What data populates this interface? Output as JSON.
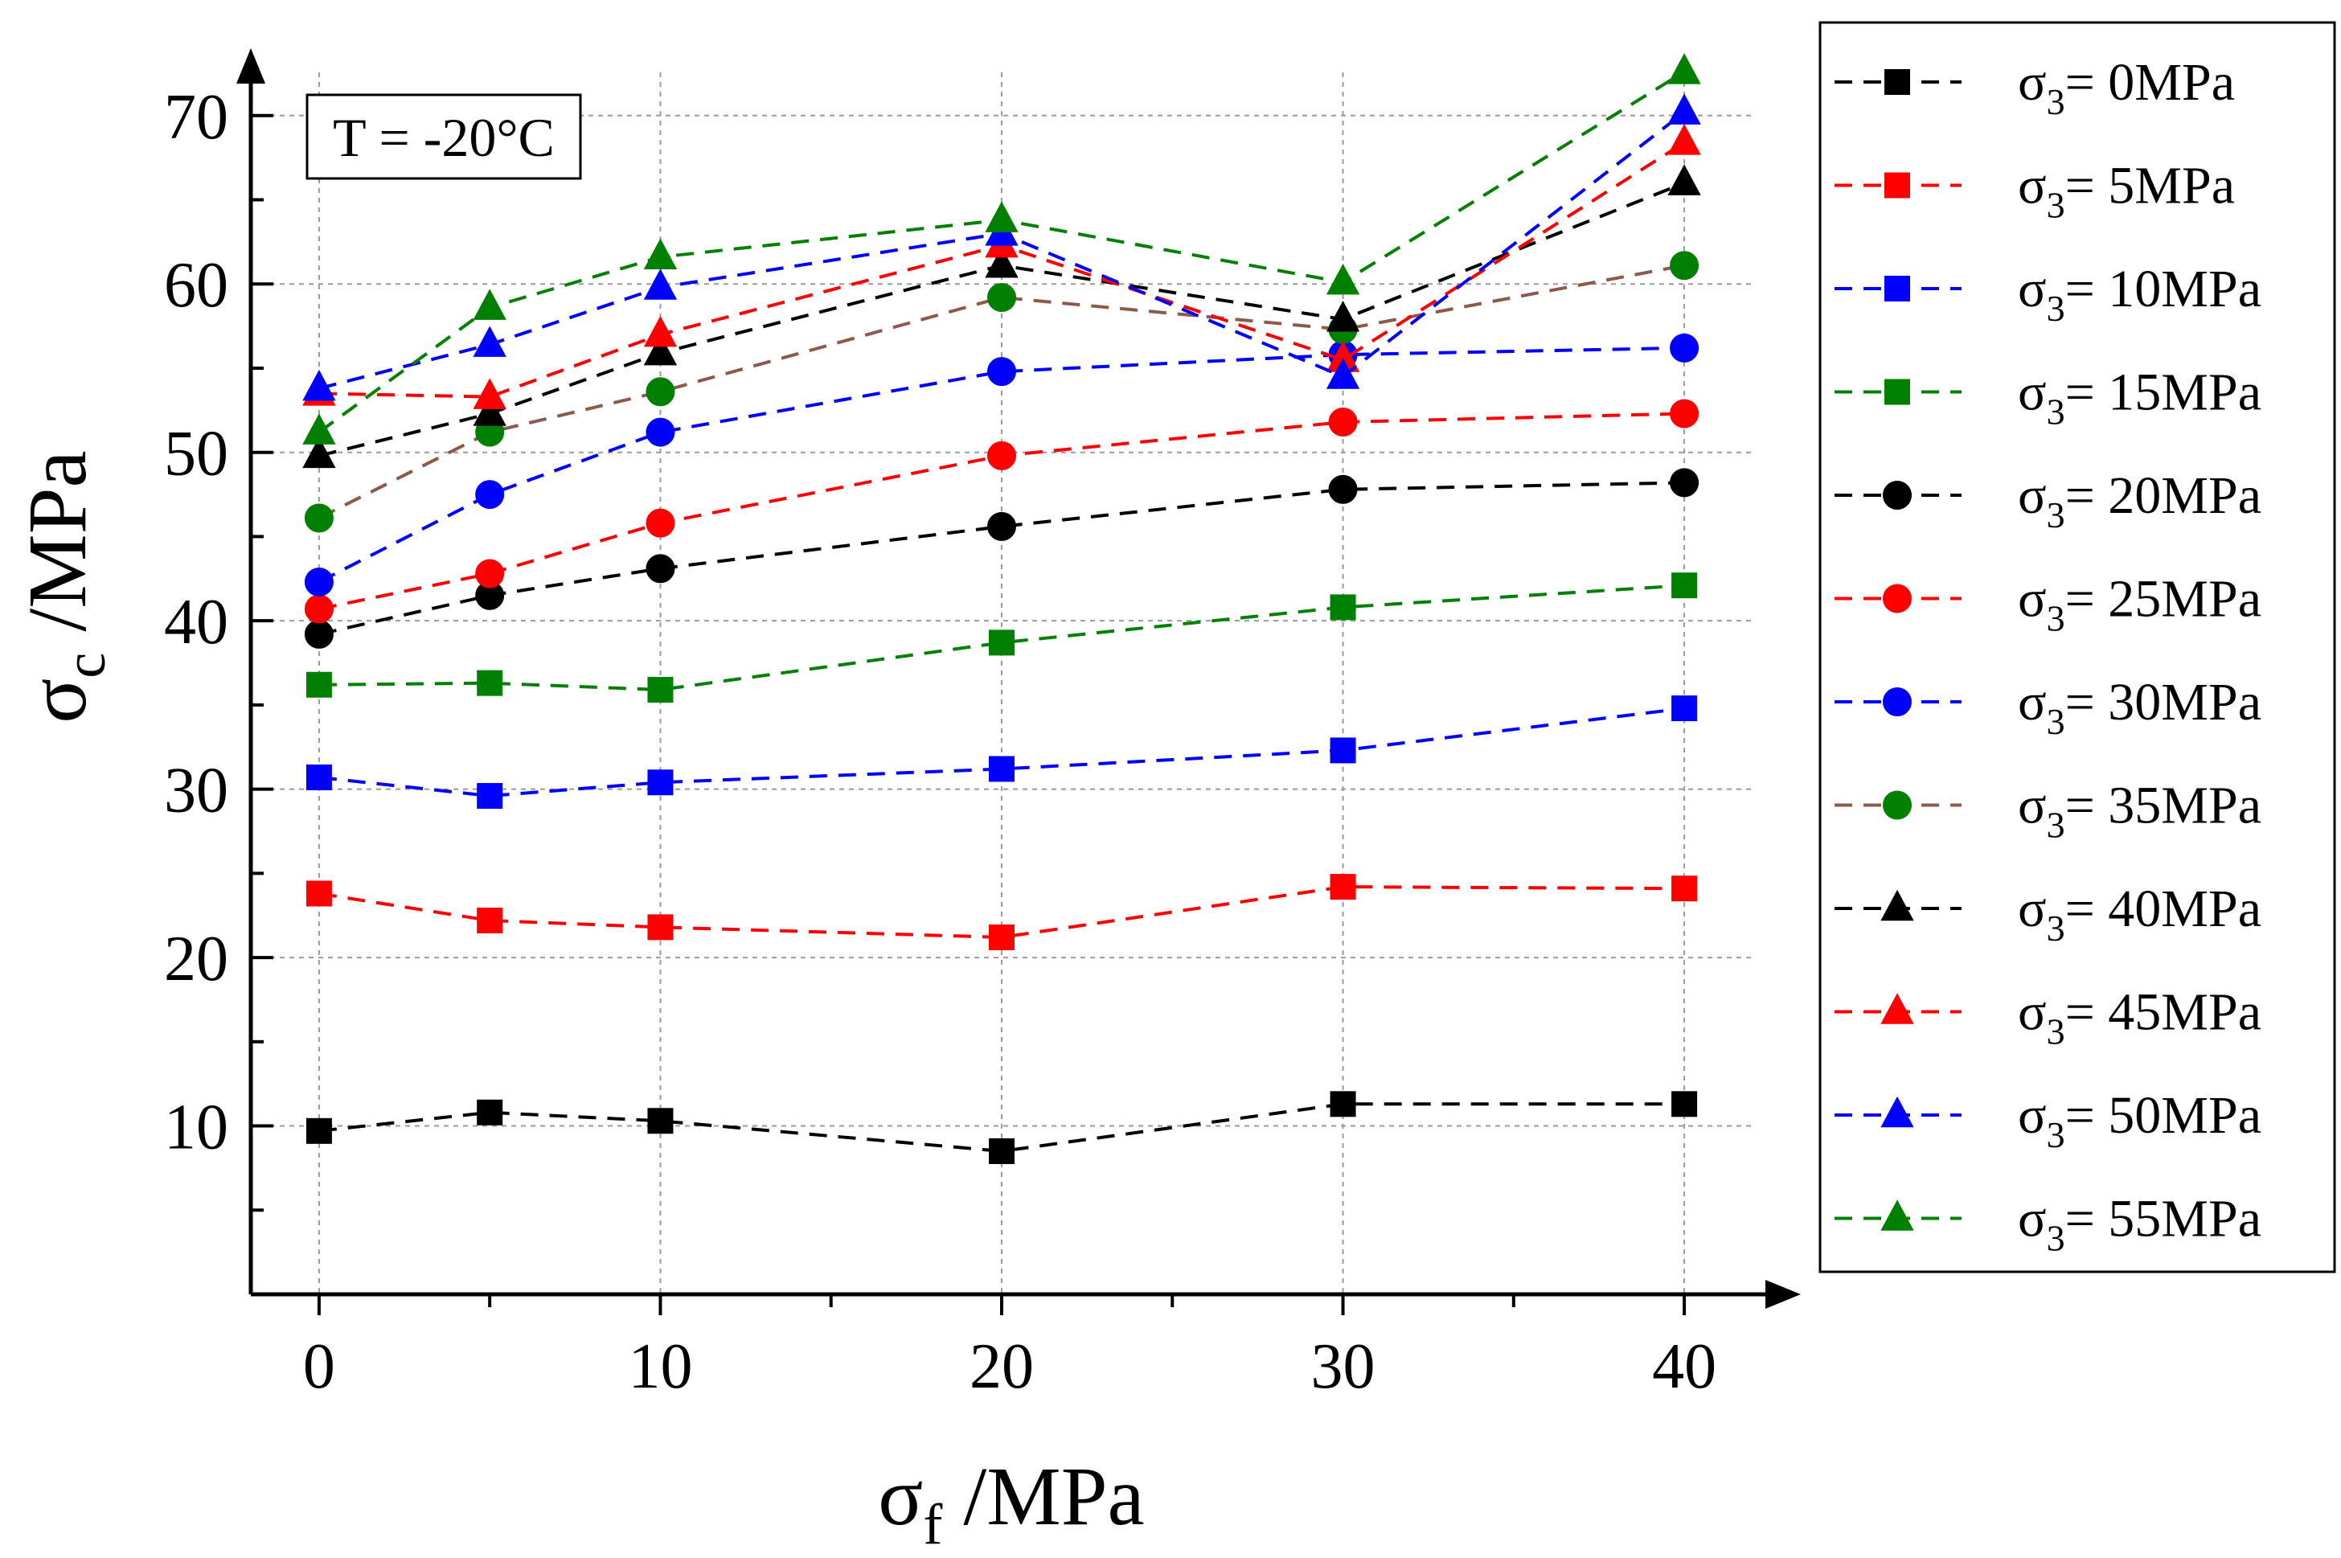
{
  "chart_data": {
    "type": "line",
    "annotation": "T = -20°C",
    "xlabel": {
      "main": "σ",
      "sub": "f",
      "rest": " /MPa"
    },
    "ylabel": {
      "main": "σ",
      "sub": "c",
      "rest": " /MPa"
    },
    "xlim": [
      -2,
      42
    ],
    "ylim": [
      0,
      74
    ],
    "x_ticks": [
      0,
      10,
      20,
      30,
      40
    ],
    "y_ticks": [
      10,
      20,
      30,
      40,
      50,
      60,
      70
    ],
    "grid": true,
    "legend_position": "right-outside",
    "x": [
      0,
      5,
      10,
      20,
      30,
      40
    ],
    "series": [
      {
        "name": "σ3= 0MPa",
        "legend": {
          "main": "σ",
          "sub": "3",
          "rest": "= 0MPa"
        },
        "marker": "square",
        "color": "#000000",
        "values": [
          9.7,
          10.8,
          10.3,
          8.5,
          11.3,
          11.3
        ]
      },
      {
        "name": "σ3= 5MPa",
        "legend": {
          "main": "σ",
          "sub": "3",
          "rest": "= 5MPa"
        },
        "marker": "square",
        "color": "#ff0000",
        "values": [
          23.8,
          22.2,
          21.8,
          21.2,
          24.2,
          24.1
        ]
      },
      {
        "name": "σ3= 10MPa",
        "legend": {
          "main": "σ",
          "sub": "3",
          "rest": "= 10MPa"
        },
        "marker": "square",
        "color": "#0000ff",
        "values": [
          30.7,
          29.6,
          30.4,
          31.2,
          32.3,
          34.8
        ]
      },
      {
        "name": "σ3= 15MPa",
        "legend": {
          "main": "σ",
          "sub": "3",
          "rest": "= 15MPa"
        },
        "marker": "square",
        "color": "#008000",
        "values": [
          36.2,
          36.3,
          35.9,
          38.7,
          40.8,
          42.1
        ]
      },
      {
        "name": "σ3= 20MPa",
        "legend": {
          "main": "σ",
          "sub": "3",
          "rest": "= 20MPa"
        },
        "marker": "circle",
        "color": "#000000",
        "values": [
          39.2,
          41.5,
          43.1,
          45.6,
          47.8,
          48.2
        ]
      },
      {
        "name": "σ3= 25MPa",
        "legend": {
          "main": "σ",
          "sub": "3",
          "rest": "= 25MPa"
        },
        "marker": "circle",
        "color": "#ff0000",
        "values": [
          40.7,
          42.8,
          45.8,
          49.8,
          51.8,
          52.3
        ]
      },
      {
        "name": "σ3= 30MPa",
        "legend": {
          "main": "σ",
          "sub": "3",
          "rest": "= 30MPa"
        },
        "marker": "circle",
        "color": "#0000ff",
        "values": [
          42.3,
          47.5,
          51.2,
          54.8,
          55.8,
          56.2
        ]
      },
      {
        "name": "σ3= 35MPa",
        "legend": {
          "main": "σ",
          "sub": "3",
          "rest": "= 35MPa"
        },
        "marker": "circle",
        "color": "#008000",
        "line_color": "#8b5a4a",
        "values": [
          46.1,
          51.2,
          53.6,
          59.2,
          57.3,
          61.1
        ]
      },
      {
        "name": "σ3= 40MPa",
        "legend": {
          "main": "σ",
          "sub": "3",
          "rest": "= 40MPa"
        },
        "marker": "triangle",
        "color": "#000000",
        "values": [
          49.8,
          52.3,
          55.9,
          61.1,
          57.9,
          66.0
        ]
      },
      {
        "name": "σ3= 45MPa",
        "legend": {
          "main": "σ",
          "sub": "3",
          "rest": "= 45MPa"
        },
        "marker": "triangle",
        "color": "#ff0000",
        "values": [
          53.5,
          53.3,
          57.0,
          62.3,
          55.5,
          68.4
        ]
      },
      {
        "name": "σ3= 50MPa",
        "legend": {
          "main": "σ",
          "sub": "3",
          "rest": "= 50MPa"
        },
        "marker": "triangle",
        "color": "#0000ff",
        "values": [
          53.8,
          56.4,
          59.8,
          63.0,
          54.5,
          70.2
        ]
      },
      {
        "name": "σ3= 55MPa",
        "legend": {
          "main": "σ",
          "sub": "3",
          "rest": "= 55MPa"
        },
        "marker": "triangle",
        "color": "#008000",
        "values": [
          51.2,
          58.6,
          61.6,
          63.8,
          60.1,
          72.6
        ]
      }
    ]
  }
}
